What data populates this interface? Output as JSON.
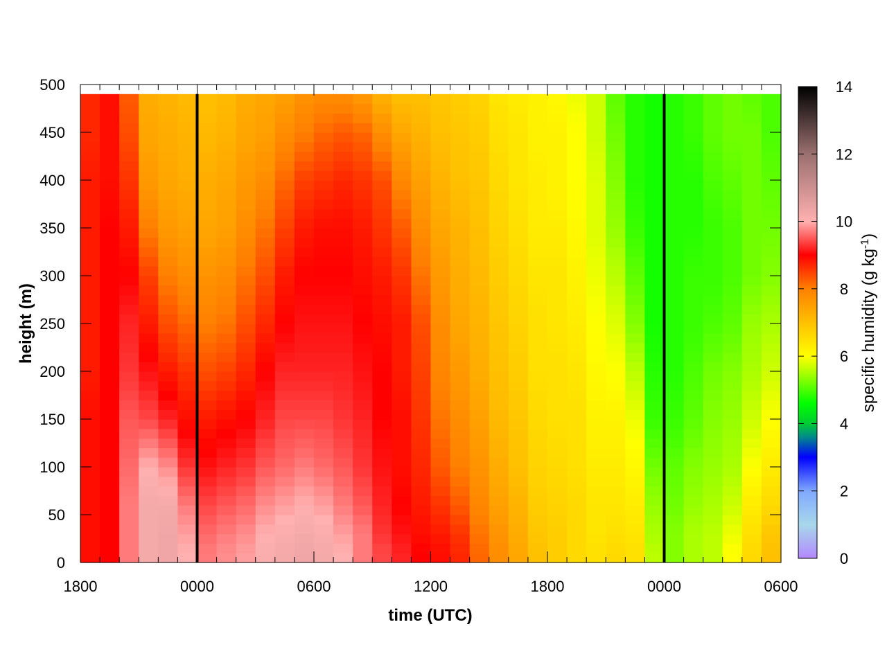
{
  "chart_data": {
    "type": "heatmap",
    "title": "",
    "xlabel": "time (UTC)",
    "ylabel": "height (m)",
    "colorbar_label": "specific humidity (g kg",
    "colorbar_label_exponent": "-1",
    "colorbar_label_close": ")",
    "x_tick_labels": [
      "1800",
      "0000",
      "0600",
      "1200",
      "1800",
      "0000",
      "0600"
    ],
    "x_hours_from_start": [
      0,
      6,
      12,
      18,
      24,
      30,
      36
    ],
    "xlim_hours": [
      0,
      36
    ],
    "y_ticks": [
      0,
      50,
      100,
      150,
      200,
      250,
      300,
      350,
      400,
      450,
      500
    ],
    "ylim": [
      0,
      500
    ],
    "colorbar_ticks": [
      0,
      2,
      4,
      6,
      8,
      10,
      12,
      14
    ],
    "zlim": [
      0,
      14
    ],
    "grid": false,
    "vertical_lines_hours": [
      6,
      30
    ],
    "column_hours": [
      0.5,
      1.5,
      2.5,
      3.5,
      4.5,
      5.5,
      6.5,
      7.5,
      8.5,
      9.5,
      10.5,
      11.5,
      12.5,
      13.5,
      14.5,
      15.5,
      16.5,
      17.5,
      18.5,
      19.5,
      20.5,
      21.5,
      22.5,
      23.5,
      24.5,
      25.5,
      26.5,
      27.5,
      28.5,
      29.5,
      30.5,
      31.5,
      32.5,
      33.5,
      34.5,
      35.5
    ],
    "profile_heights": [
      0,
      10,
      30,
      60,
      100,
      150,
      200,
      250,
      300,
      350,
      400,
      450,
      490
    ],
    "profiles": [
      [
        8.9,
        8.9,
        8.9,
        8.9,
        8.9,
        8.9,
        8.8,
        8.8,
        8.8,
        8.8,
        8.8,
        8.7,
        8.7
      ],
      [
        9.0,
        9.0,
        9.0,
        9.0,
        9.0,
        9.0,
        9.0,
        9.0,
        9.0,
        9.0,
        8.9,
        8.9,
        8.9
      ],
      [
        9.7,
        9.7,
        9.7,
        9.7,
        9.6,
        9.5,
        9.3,
        9.2,
        9.0,
        8.8,
        8.6,
        8.4,
        8.3
      ],
      [
        10.2,
        10.2,
        10.2,
        10.2,
        10.0,
        9.4,
        9.1,
        8.8,
        8.5,
        8.0,
        7.6,
        7.4,
        7.3
      ],
      [
        10.3,
        10.3,
        10.3,
        10.2,
        9.8,
        9.2,
        8.8,
        8.4,
        8.0,
        7.6,
        7.4,
        7.3,
        7.2
      ],
      [
        10.0,
        10.0,
        9.9,
        9.7,
        9.3,
        8.9,
        8.6,
        8.2,
        7.8,
        7.5,
        7.3,
        7.2,
        7.1
      ],
      [
        9.7,
        9.7,
        9.6,
        9.4,
        9.1,
        8.8,
        8.4,
        8.0,
        7.7,
        7.4,
        7.3,
        7.1,
        7.0
      ],
      [
        9.8,
        9.8,
        9.7,
        9.5,
        9.2,
        8.9,
        8.5,
        8.1,
        7.8,
        7.5,
        7.4,
        7.2,
        7.1
      ],
      [
        9.9,
        9.9,
        9.8,
        9.6,
        9.3,
        9.0,
        8.7,
        8.4,
        8.1,
        7.8,
        7.6,
        7.4,
        7.3
      ],
      [
        10.1,
        10.1,
        10.0,
        9.8,
        9.5,
        9.2,
        9.0,
        8.7,
        8.4,
        8.1,
        7.8,
        7.5,
        7.4
      ],
      [
        10.2,
        10.2,
        10.1,
        9.9,
        9.6,
        9.4,
        9.2,
        9.0,
        8.8,
        8.5,
        8.2,
        7.8,
        7.5
      ],
      [
        10.3,
        10.3,
        10.2,
        10.0,
        9.7,
        9.4,
        9.2,
        9.1,
        9.0,
        8.8,
        8.5,
        8.0,
        7.7
      ],
      [
        10.2,
        10.2,
        10.1,
        9.9,
        9.6,
        9.4,
        9.2,
        9.1,
        9.0,
        8.9,
        8.6,
        8.2,
        7.8
      ],
      [
        10.0,
        10.0,
        9.9,
        9.7,
        9.5,
        9.3,
        9.2,
        9.1,
        9.0,
        8.9,
        8.7,
        8.3,
        7.8
      ],
      [
        9.7,
        9.7,
        9.7,
        9.5,
        9.3,
        9.2,
        9.1,
        9.0,
        8.9,
        8.8,
        8.6,
        8.2,
        7.6
      ],
      [
        9.4,
        9.4,
        9.3,
        9.2,
        9.1,
        9.0,
        9.0,
        8.9,
        8.8,
        8.6,
        8.4,
        7.8,
        7.2
      ],
      [
        9.2,
        9.2,
        9.1,
        9.0,
        8.9,
        8.9,
        8.8,
        8.8,
        8.6,
        8.3,
        7.9,
        7.4,
        7.0
      ],
      [
        9.0,
        9.0,
        8.9,
        8.8,
        8.7,
        8.6,
        8.5,
        8.4,
        8.1,
        7.8,
        7.5,
        7.2,
        7.0
      ],
      [
        8.9,
        8.9,
        8.8,
        8.6,
        8.3,
        8.1,
        7.9,
        7.8,
        7.6,
        7.4,
        7.2,
        7.0,
        6.9
      ],
      [
        8.7,
        8.7,
        8.6,
        8.3,
        8.0,
        7.8,
        7.6,
        7.4,
        7.3,
        7.2,
        7.0,
        6.9,
        6.8
      ],
      [
        8.2,
        8.2,
        8.1,
        7.9,
        7.7,
        7.5,
        7.3,
        7.2,
        7.1,
        7.0,
        6.9,
        6.8,
        6.7
      ],
      [
        7.8,
        7.8,
        7.7,
        7.5,
        7.3,
        7.1,
        7.0,
        6.9,
        6.8,
        6.7,
        6.6,
        6.5,
        6.4
      ],
      [
        7.4,
        7.4,
        7.3,
        7.2,
        7.0,
        6.9,
        6.8,
        6.7,
        6.6,
        6.5,
        6.4,
        6.4,
        6.3
      ],
      [
        7.0,
        7.0,
        6.9,
        6.8,
        6.7,
        6.6,
        6.5,
        6.5,
        6.4,
        6.3,
        6.3,
        6.2,
        6.2
      ],
      [
        6.8,
        6.8,
        6.8,
        6.7,
        6.6,
        6.5,
        6.5,
        6.4,
        6.4,
        6.3,
        6.2,
        6.2,
        6.1
      ],
      [
        6.6,
        6.6,
        6.6,
        6.6,
        6.5,
        6.5,
        6.4,
        6.3,
        6.2,
        6.1,
        6.0,
        6.0,
        5.9
      ],
      [
        6.5,
        6.5,
        6.4,
        6.4,
        6.3,
        6.2,
        6.1,
        6.0,
        5.9,
        5.8,
        5.8,
        5.7,
        5.7
      ],
      [
        6.6,
        6.6,
        6.5,
        6.4,
        6.3,
        6.2,
        6.0,
        5.8,
        5.6,
        5.4,
        5.3,
        5.2,
        5.1
      ],
      [
        6.5,
        6.5,
        6.4,
        6.3,
        6.1,
        5.9,
        5.6,
        5.3,
        5.1,
        4.9,
        4.8,
        4.8,
        4.8
      ],
      [
        5.6,
        5.6,
        5.5,
        5.4,
        5.2,
        4.9,
        4.8,
        4.7,
        4.7,
        4.7,
        4.7,
        4.7,
        4.7
      ],
      [
        5.3,
        5.3,
        5.3,
        5.2,
        5.1,
        4.9,
        4.8,
        4.8,
        4.8,
        4.8,
        4.8,
        4.8,
        4.8
      ],
      [
        5.5,
        5.5,
        5.5,
        5.4,
        5.3,
        5.1,
        5.0,
        4.9,
        4.9,
        4.8,
        4.8,
        4.9,
        4.9
      ],
      [
        5.6,
        5.6,
        5.6,
        5.5,
        5.4,
        5.3,
        5.2,
        5.0,
        4.9,
        4.9,
        5.0,
        5.1,
        5.1
      ],
      [
        6.0,
        6.0,
        5.9,
        5.7,
        5.5,
        5.4,
        5.3,
        5.1,
        5.0,
        5.0,
        5.1,
        5.2,
        5.2
      ],
      [
        6.6,
        6.6,
        6.5,
        6.3,
        6.0,
        5.7,
        5.5,
        5.4,
        5.2,
        5.2,
        5.2,
        5.2,
        5.1
      ],
      [
        7.0,
        7.0,
        6.9,
        6.6,
        6.3,
        6.0,
        5.7,
        5.5,
        5.3,
        5.2,
        5.1,
        5.0,
        5.0
      ]
    ],
    "colormap": [
      {
        "v": 0,
        "c": "#b388ff"
      },
      {
        "v": 1,
        "c": "#a8d8ea"
      },
      {
        "v": 2,
        "c": "#7fa8ff"
      },
      {
        "v": 3,
        "c": "#0000ff"
      },
      {
        "v": 3.6,
        "c": "#008a8a"
      },
      {
        "v": 4,
        "c": "#00cc33"
      },
      {
        "v": 4.6,
        "c": "#00ff00"
      },
      {
        "v": 5.5,
        "c": "#aaff00"
      },
      {
        "v": 6,
        "c": "#ffff00"
      },
      {
        "v": 7,
        "c": "#ffc000"
      },
      {
        "v": 8,
        "c": "#ff8000"
      },
      {
        "v": 9,
        "c": "#ff0000"
      },
      {
        "v": 10,
        "c": "#ffb0b0"
      },
      {
        "v": 12,
        "c": "#9b7070"
      },
      {
        "v": 14,
        "c": "#000000"
      }
    ]
  }
}
